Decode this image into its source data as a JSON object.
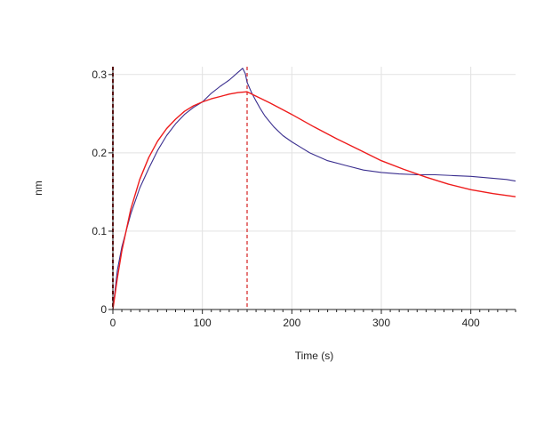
{
  "chart_data": {
    "type": "line",
    "title": "",
    "xlabel": "Time (s)",
    "ylabel": "nm",
    "xlim": [
      0,
      450
    ],
    "ylim": [
      0,
      0.31
    ],
    "x_ticks": [
      0,
      100,
      200,
      300,
      400
    ],
    "x_tick_labels": [
      "0",
      "100",
      "200",
      "300",
      "400"
    ],
    "y_ticks": [
      0,
      0.1,
      0.2,
      0.3
    ],
    "y_tick_labels": [
      "0",
      "0.1",
      "0.2",
      "0.3"
    ],
    "grid": true,
    "legend": "none",
    "markers": [
      {
        "x": 0,
        "color": "#8b0000",
        "style": "dashed"
      },
      {
        "x": 150,
        "color": "#d62020",
        "style": "dashed"
      }
    ],
    "series": [
      {
        "color": "#3b2f8f",
        "x": [
          0,
          5,
          10,
          20,
          30,
          40,
          50,
          60,
          70,
          80,
          90,
          100,
          110,
          120,
          130,
          140,
          145,
          148,
          150,
          155,
          160,
          165,
          170,
          180,
          190,
          200,
          210,
          220,
          240,
          260,
          280,
          300,
          320,
          340,
          360,
          380,
          400,
          420,
          440,
          450
        ],
        "y": [
          0.0,
          0.05,
          0.08,
          0.122,
          0.155,
          0.18,
          0.203,
          0.222,
          0.237,
          0.249,
          0.258,
          0.265,
          0.276,
          0.285,
          0.293,
          0.303,
          0.308,
          0.301,
          0.29,
          0.277,
          0.266,
          0.256,
          0.247,
          0.233,
          0.222,
          0.214,
          0.207,
          0.2,
          0.19,
          0.184,
          0.178,
          0.175,
          0.173,
          0.172,
          0.172,
          0.171,
          0.17,
          0.168,
          0.166,
          0.164
        ]
      },
      {
        "color": "#ee1c1c",
        "x": [
          0,
          5,
          10,
          20,
          30,
          40,
          50,
          60,
          70,
          80,
          90,
          100,
          110,
          120,
          130,
          140,
          150,
          175,
          200,
          225,
          250,
          275,
          300,
          325,
          350,
          375,
          400,
          425,
          450
        ],
        "y": [
          0.0,
          0.04,
          0.075,
          0.128,
          0.166,
          0.194,
          0.215,
          0.231,
          0.243,
          0.253,
          0.26,
          0.265,
          0.269,
          0.272,
          0.275,
          0.277,
          0.278,
          0.264,
          0.249,
          0.233,
          0.218,
          0.204,
          0.19,
          0.179,
          0.169,
          0.16,
          0.153,
          0.148,
          0.144
        ]
      }
    ]
  }
}
